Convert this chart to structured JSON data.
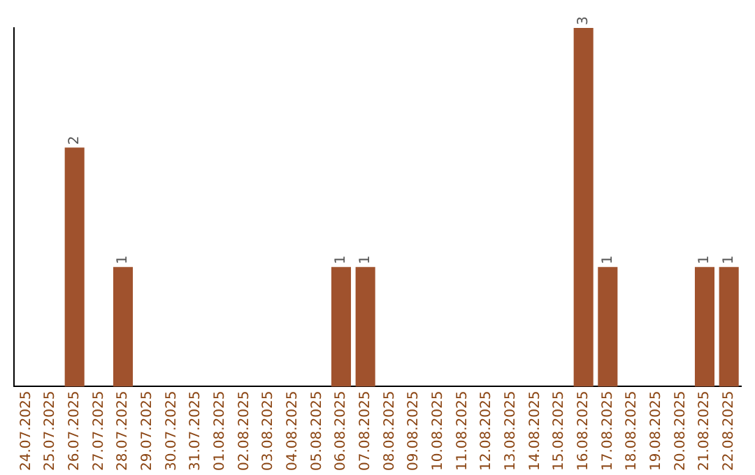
{
  "chart_data": {
    "type": "bar",
    "categories": [
      "24.07.2025",
      "25.07.2025",
      "26.07.2025",
      "27.07.2025",
      "28.07.2025",
      "29.07.2025",
      "30.07.2025",
      "31.07.2025",
      "01.08.2025",
      "02.08.2025",
      "03.08.2025",
      "04.08.2025",
      "05.08.2025",
      "06.08.2025",
      "07.08.2025",
      "08.08.2025",
      "09.08.2025",
      "10.08.2025",
      "11.08.2025",
      "12.08.2025",
      "13.08.2025",
      "14.08.2025",
      "15.08.2025",
      "16.08.2025",
      "17.08.2025",
      "18.08.2025",
      "19.08.2025",
      "20.08.2025",
      "21.08.2025",
      "22.08.2025"
    ],
    "values": [
      0,
      0,
      2,
      0,
      1,
      0,
      0,
      0,
      0,
      0,
      0,
      0,
      0,
      1,
      1,
      0,
      0,
      0,
      0,
      0,
      0,
      0,
      0,
      3,
      1,
      0,
      0,
      0,
      1,
      1
    ],
    "value_labels": [
      null,
      null,
      "2",
      null,
      "1",
      null,
      null,
      null,
      null,
      null,
      null,
      null,
      null,
      "1",
      "1",
      null,
      null,
      null,
      null,
      null,
      null,
      null,
      null,
      "3",
      "1",
      null,
      null,
      null,
      "1",
      "1"
    ],
    "color": "#a0522d",
    "ylim": [
      0,
      3
    ],
    "tick_labels": "x",
    "grid": false,
    "legend": false
  }
}
